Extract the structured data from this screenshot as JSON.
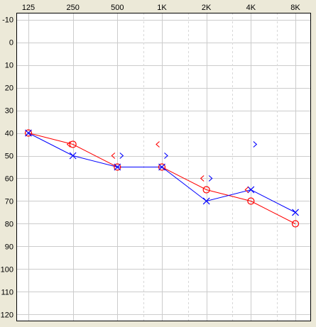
{
  "chart_data": {
    "type": "scatter",
    "title": "",
    "xlabel": "",
    "ylabel": "",
    "x_scale": "log",
    "x_ticks": [
      "125",
      "250",
      "500",
      "1K",
      "2K",
      "4K",
      "8K"
    ],
    "x_tick_values": [
      125,
      250,
      500,
      1000,
      2000,
      4000,
      8000
    ],
    "x_interoctave_values": [
      750,
      1500,
      3000,
      6000
    ],
    "y_ticks": [
      -10,
      0,
      10,
      20,
      30,
      40,
      50,
      60,
      70,
      80,
      90,
      100,
      110,
      120
    ],
    "y_range": [
      -13,
      123
    ],
    "y_inverted": true,
    "grid": true,
    "legend": "none",
    "colors": {
      "right_ear": "#ff0000",
      "left_ear": "#0000ff",
      "background": "#ffffff",
      "frame": "#ece9d8",
      "grid": "#cccccc",
      "interoctave_grid": "#d8d8d8"
    },
    "series": [
      {
        "symbol": "circle",
        "ear": "right",
        "connected": true,
        "points": [
          {
            "x": 125,
            "y": 40
          },
          {
            "x": 250,
            "y": 45
          },
          {
            "x": 500,
            "y": 55
          },
          {
            "x": 1000,
            "y": 55
          },
          {
            "x": 2000,
            "y": 65
          },
          {
            "x": 4000,
            "y": 70
          },
          {
            "x": 8000,
            "y": 80
          }
        ]
      },
      {
        "symbol": "cross",
        "ear": "left",
        "connected": true,
        "points": [
          {
            "x": 125,
            "y": 40
          },
          {
            "x": 250,
            "y": 50
          },
          {
            "x": 500,
            "y": 55
          },
          {
            "x": 1000,
            "y": 55
          },
          {
            "x": 2000,
            "y": 70
          },
          {
            "x": 4000,
            "y": 65
          },
          {
            "x": 8000,
            "y": 75
          }
        ]
      },
      {
        "symbol": "bracket-left",
        "ear": "right",
        "connected": false,
        "points": [
          {
            "x": 250,
            "y": 45
          },
          {
            "x": 500,
            "y": 50
          },
          {
            "x": 1000,
            "y": 45
          },
          {
            "x": 2000,
            "y": 60
          },
          {
            "x": 4000,
            "y": 65
          }
        ]
      },
      {
        "symbol": "bracket-right",
        "ear": "left",
        "connected": false,
        "points": [
          {
            "x": 500,
            "y": 50
          },
          {
            "x": 1000,
            "y": 50
          },
          {
            "x": 2000,
            "y": 60
          },
          {
            "x": 4000,
            "y": 45
          }
        ]
      }
    ]
  }
}
